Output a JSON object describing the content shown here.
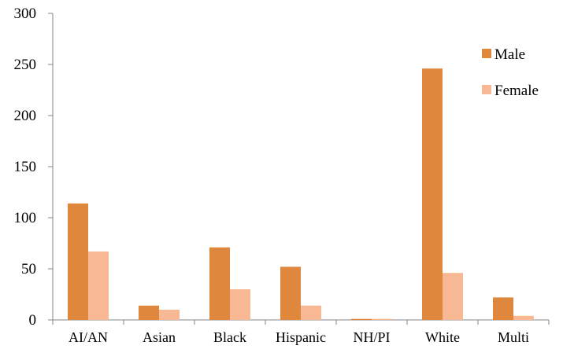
{
  "chart_data": {
    "type": "bar",
    "title": "",
    "xlabel": "",
    "ylabel": "",
    "categories": [
      "AI/AN",
      "Asian",
      "Black",
      "Hispanic",
      "NH/PI",
      "White",
      "Multi"
    ],
    "series": [
      {
        "name": "Male",
        "color": "#e0873e",
        "values": [
          114,
          14,
          71,
          52,
          1,
          246,
          22
        ]
      },
      {
        "name": "Female",
        "color": "#f8b893",
        "values": [
          67,
          10,
          30,
          14,
          1,
          46,
          4
        ]
      }
    ],
    "ylim": [
      0,
      300
    ],
    "yticks": [
      0,
      50,
      100,
      150,
      200,
      250,
      300
    ],
    "grid": false,
    "legend": "top-right"
  }
}
